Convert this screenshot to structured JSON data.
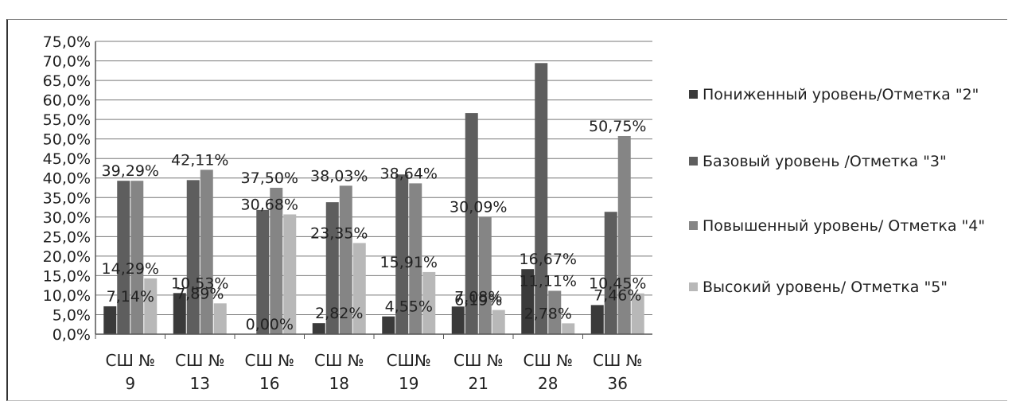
{
  "chart_data": {
    "type": "bar",
    "title": "",
    "xlabel": "",
    "ylabel": "",
    "ylim": [
      0,
      75
    ],
    "y_ticks": [
      "0,0%",
      "5,0%",
      "10,0%",
      "15,0%",
      "20,0%",
      "25,0%",
      "30,0%",
      "35,0%",
      "40,0%",
      "45,0%",
      "50,0%",
      "55,0%",
      "60,0%",
      "65,0%",
      "70,0%",
      "75,0%"
    ],
    "grid": true,
    "legend_position": "right",
    "categories": [
      [
        "СШ №",
        "9"
      ],
      [
        "СШ №",
        "13"
      ],
      [
        "СШ №",
        "16"
      ],
      [
        "СШ №",
        "18"
      ],
      [
        "СШ№",
        "19"
      ],
      [
        "СШ №",
        "21"
      ],
      [
        "СШ №",
        "28"
      ],
      [
        "СШ №",
        "36"
      ]
    ],
    "series": [
      {
        "name": "Пониженный уровень/Отметка \"2\"",
        "color": "#3a3a3a",
        "values": [
          7.14,
          10.53,
          0.0,
          2.82,
          4.55,
          7.08,
          16.67,
          7.46
        ]
      },
      {
        "name": "Базовый уровень /Отметка \"3\"",
        "color": "#5e5e5e",
        "values": [
          39.29,
          39.47,
          31.82,
          33.8,
          40.91,
          56.64,
          69.44,
          31.34
        ]
      },
      {
        "name": "Повышенный уровень/ Отметка \"4\"",
        "color": "#858585",
        "values": [
          39.29,
          42.11,
          37.5,
          38.03,
          38.64,
          30.09,
          11.11,
          50.75
        ]
      },
      {
        "name": "Высокий уровень/ Отметка \"5\"",
        "color": "#b8b8b8",
        "values": [
          14.29,
          7.89,
          30.68,
          23.35,
          15.91,
          6.19,
          2.78,
          10.45
        ]
      }
    ],
    "data_labels": [
      {
        "text": "39,29%",
        "category": 0,
        "value": 39.29
      },
      {
        "text": "14,29%",
        "category": 0,
        "value": 14.29
      },
      {
        "text": "7,14%",
        "category": 0,
        "value": 7.14
      },
      {
        "text": "42,11%",
        "category": 1,
        "value": 42.11
      },
      {
        "text": "10,53%",
        "category": 1,
        "value": 10.53
      },
      {
        "text": "7,89%",
        "category": 1,
        "value": 7.89
      },
      {
        "text": "37,50%",
        "category": 2,
        "value": 37.5
      },
      {
        "text": "30,68%",
        "category": 2,
        "value": 30.68
      },
      {
        "text": "0,00%",
        "category": 2,
        "value": 0.0
      },
      {
        "text": "38,03%",
        "category": 3,
        "value": 38.03
      },
      {
        "text": "23,35%",
        "category": 3,
        "value": 23.35
      },
      {
        "text": "2,82%",
        "category": 3,
        "value": 2.82
      },
      {
        "text": "38,64%",
        "category": 4,
        "value": 38.64
      },
      {
        "text": "15,91%",
        "category": 4,
        "value": 15.91
      },
      {
        "text": "4,55%",
        "category": 4,
        "value": 4.55
      },
      {
        "text": "30,09%",
        "category": 5,
        "value": 30.09
      },
      {
        "text": "7,08%",
        "category": 5,
        "value": 7.08
      },
      {
        "text": "6,19%",
        "category": 5,
        "value": 6.19
      },
      {
        "text": "16,67%",
        "category": 6,
        "value": 16.67
      },
      {
        "text": "11,11%",
        "category": 6,
        "value": 11.11
      },
      {
        "text": "2,78%",
        "category": 6,
        "value": 2.78
      },
      {
        "text": "50,75%",
        "category": 7,
        "value": 50.75
      },
      {
        "text": "7,46%",
        "category": 7,
        "value": 7.46
      },
      {
        "text": "10,45%",
        "category": 7,
        "value": 10.45
      }
    ]
  }
}
